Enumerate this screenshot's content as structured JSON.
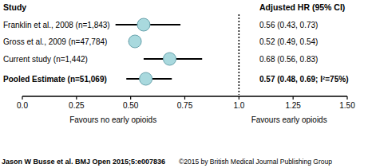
{
  "chart_data": {
    "type": "forest",
    "columns": [
      "Study",
      "Adjusted HR (95% CI)"
    ],
    "categories": [
      "Franklin et al., 2008 (n=1,843)",
      "Gross et al., 2009 (n=47,784)",
      "Current study (n=1,442)",
      "Pooled Estimate (n=51,069)"
    ],
    "values": [
      0.56,
      0.52,
      0.68,
      0.57
    ],
    "lower": [
      0.43,
      0.49,
      0.56,
      0.48
    ],
    "upper": [
      0.73,
      0.54,
      0.83,
      0.69
    ],
    "value_labels": [
      "0.56 (0.43, 0.73)",
      "0.52 (0.49, 0.54)",
      "0.68 (0.56, 0.83)",
      "0.57 (0.48, 0.69; I²=75%)"
    ],
    "reference": 1,
    "color": "#a9d9de",
    "marker": "circle",
    "xlim": [
      0,
      1.5
    ],
    "xticks": [
      {
        "value": 0,
        "label": "0.0"
      },
      {
        "value": 0.25,
        "label": "0.25"
      },
      {
        "value": 0.5,
        "label": "0.50"
      },
      {
        "value": 0.75,
        "label": "0.75"
      },
      {
        "value": 1,
        "label": "1.0"
      },
      {
        "value": 1.25,
        "label": "1.25"
      },
      {
        "value": 1.5,
        "label": "1.50"
      }
    ],
    "annotations": [
      "Favours no early opioids",
      "Favours early opioids"
    ],
    "footer": [
      "Jason W Busse et al. BMJ Open 2015;5:e007836",
      "©2015 by British Medical Journal Publishing Group"
    ]
  }
}
